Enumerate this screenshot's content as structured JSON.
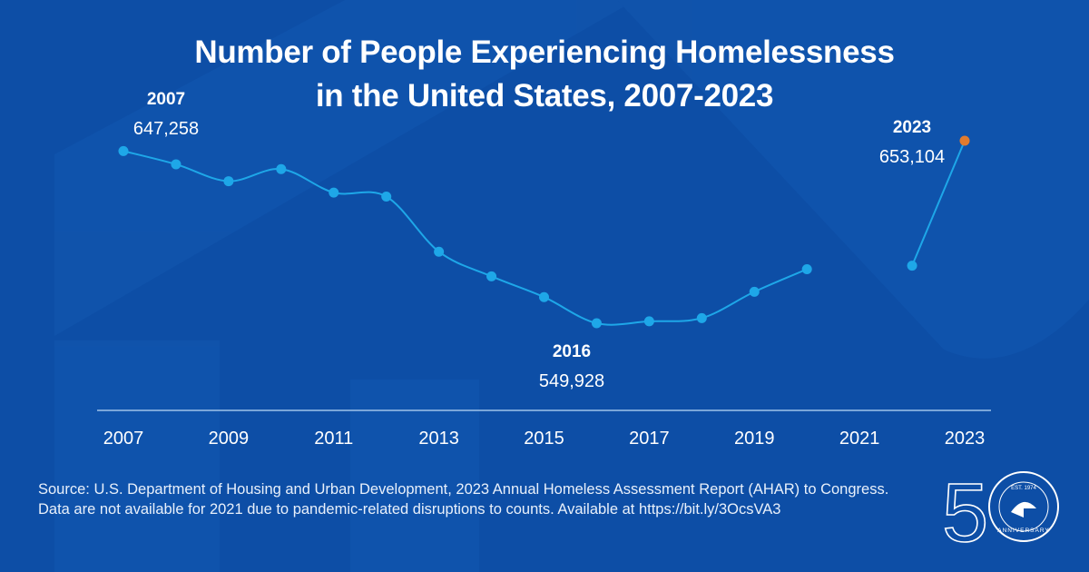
{
  "chart_data": {
    "type": "line",
    "title": "Number of People Experiencing Homelessness in the United States, 2007-2023",
    "title_lines": [
      "Number of People Experiencing Homelessness",
      "in the United States, 2007-2023"
    ],
    "x": [
      2007,
      2008,
      2009,
      2010,
      2011,
      2012,
      2013,
      2014,
      2015,
      2016,
      2017,
      2018,
      2019,
      2020,
      2022,
      2023
    ],
    "y": [
      647258,
      639784,
      630227,
      637077,
      623788,
      621553,
      590364,
      576450,
      564708,
      549928,
      550996,
      552830,
      567715,
      580466,
      582462,
      653104
    ],
    "missing_years": [
      2021
    ],
    "x_ticks": [
      "2007",
      "2009",
      "2011",
      "2013",
      "2015",
      "2017",
      "2019",
      "2021",
      "2023"
    ],
    "xlim": [
      2007,
      2023
    ],
    "ylim": [
      540000,
      660000
    ],
    "grid": false,
    "annotations": [
      {
        "year": "2007",
        "value": "647,258"
      },
      {
        "year": "2016",
        "value": "549,928"
      },
      {
        "year": "2023",
        "value": "653,104"
      }
    ],
    "colors": {
      "line": "#1ea7e8",
      "point": "#1ea7e8",
      "highlight": "#e07b2f",
      "axis": "#9fc3ea"
    }
  },
  "source_text": "Source:  U.S. Department of Housing and Urban Development, 2023 Annual Homeless Assessment Report (AHAR) to Congress. Data are not available for 2021 due to pandemic-related disruptions to counts. Available at https://bit.ly/3OcsVA3",
  "logo": {
    "numeral": "50",
    "ring_top": "EST. 1974",
    "ring_bottom": "ANNIVERSARY"
  },
  "theme": {
    "background": "#0d4ea6",
    "shape": "#1358b0"
  }
}
